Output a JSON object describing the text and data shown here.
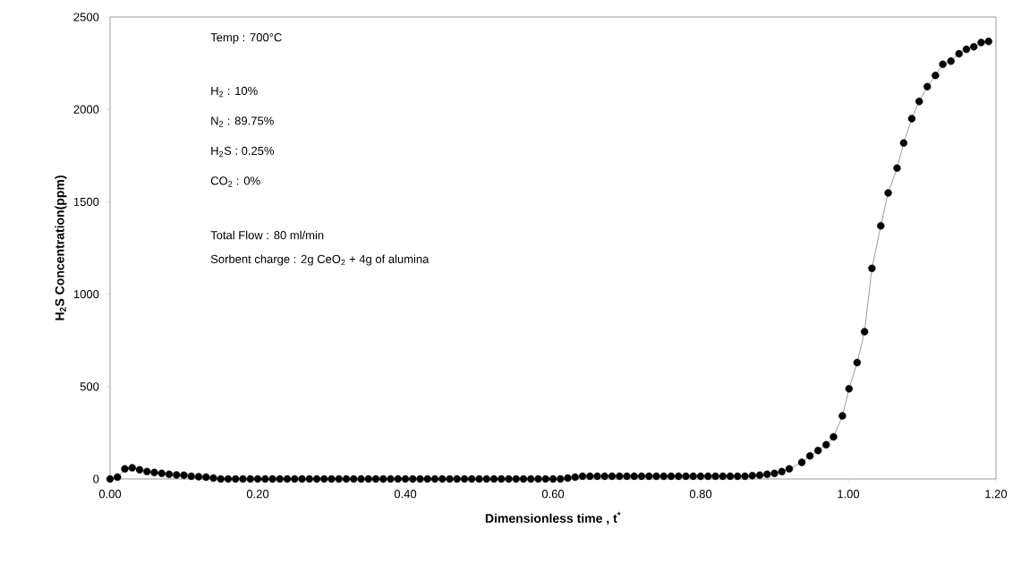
{
  "chart_data": {
    "type": "line",
    "xlabel": "Dimensionless time , t$^{*}$",
    "ylabel": "H$_{2}$S Concentration(ppm)",
    "annotations": [
      "Temp : 700°C",
      "H$_{2}$ : 10%",
      "N$_{2}$ : 89.75%",
      "H$_{2}$S : 0.25%",
      "CO$_{2}$ : 0%",
      "Total Flow : 80 ml/min",
      "Sorbent charge : 2g CeO$_{2}$ + 4g of alumina"
    ],
    "x": [
      0.0,
      0.01,
      0.02,
      0.03,
      0.04,
      0.05,
      0.06,
      0.07,
      0.08,
      0.09,
      0.1,
      0.11,
      0.12,
      0.13,
      0.14,
      0.15,
      0.16,
      0.17,
      0.18,
      0.19,
      0.2,
      0.21,
      0.22,
      0.23,
      0.24,
      0.25,
      0.26,
      0.27,
      0.28,
      0.29,
      0.3,
      0.31,
      0.32,
      0.33,
      0.34,
      0.35,
      0.36,
      0.37,
      0.38,
      0.39,
      0.4,
      0.41,
      0.42,
      0.43,
      0.44,
      0.45,
      0.46,
      0.47,
      0.48,
      0.49,
      0.5,
      0.51,
      0.52,
      0.53,
      0.54,
      0.55,
      0.56,
      0.57,
      0.58,
      0.59,
      0.6,
      0.61,
      0.62,
      0.63,
      0.64,
      0.65,
      0.66,
      0.67,
      0.68,
      0.69,
      0.7,
      0.71,
      0.72,
      0.73,
      0.74,
      0.75,
      0.76,
      0.77,
      0.78,
      0.79,
      0.8,
      0.81,
      0.82,
      0.83,
      0.84,
      0.85,
      0.86,
      0.87,
      0.88,
      0.89,
      0.9,
      0.91,
      0.92,
      0.937,
      0.948,
      0.959,
      0.97,
      0.98,
      0.992,
      1.001,
      1.012,
      1.022,
      1.032,
      1.044,
      1.054,
      1.066,
      1.075,
      1.086,
      1.096,
      1.107,
      1.118,
      1.128,
      1.139,
      1.15,
      1.16,
      1.17,
      1.18,
      1.19
    ],
    "series": [
      {
        "color": "#000000",
        "values": [
          0,
          10,
          55,
          60,
          50,
          40,
          35,
          30,
          25,
          22,
          20,
          15,
          12,
          10,
          5,
          0,
          0,
          0,
          0,
          0,
          0,
          0,
          0,
          0,
          0,
          0,
          0,
          0,
          0,
          0,
          0,
          0,
          0,
          0,
          0,
          0,
          0,
          0,
          0,
          0,
          0,
          0,
          0,
          0,
          0,
          0,
          0,
          0,
          0,
          0,
          0,
          0,
          0,
          0,
          0,
          0,
          0,
          0,
          0,
          0,
          0,
          0,
          5,
          10,
          15,
          15,
          15,
          15,
          15,
          15,
          15,
          15,
          15,
          15,
          15,
          15,
          15,
          15,
          15,
          15,
          15,
          15,
          15,
          15,
          15,
          15,
          15,
          18,
          20,
          25,
          30,
          40,
          55,
          90,
          125,
          154,
          185,
          228,
          341,
          488,
          630,
          797,
          1140,
          1370,
          1548,
          1682,
          1818,
          1950,
          2043,
          2123,
          2184,
          2244,
          2261,
          2301,
          2325,
          2339,
          2362,
          2368
        ]
      }
    ],
    "xlim": [
      0,
      1.2
    ],
    "ylim": [
      0,
      2500
    ],
    "xticks": [
      {
        "value": 0,
        "label": "0.00"
      },
      {
        "value": 0.2,
        "label": "0.20"
      },
      {
        "value": 0.4,
        "label": "0.40"
      },
      {
        "value": 0.6,
        "label": "0.60"
      },
      {
        "value": 0.8,
        "label": "0.80"
      },
      {
        "value": 1.0,
        "label": "1.00"
      },
      {
        "value": 1.2,
        "label": "1.20"
      }
    ],
    "yticks": [
      0,
      500,
      1000,
      1500,
      2000,
      2500
    ],
    "grid": false,
    "marker": "circle",
    "line_style": "solid"
  }
}
